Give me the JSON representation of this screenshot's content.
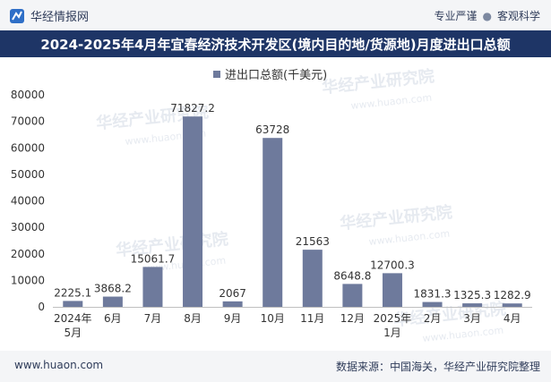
{
  "header": {
    "brand": "华经情报网",
    "tagline_left": "专业严谨",
    "tagline_sep": "●",
    "tagline_right": "客观科学"
  },
  "title": "2024-2025年4月年宜春经济技术开发区(境内目的地/货源地)月度进出口总额",
  "footer": {
    "website": "www.huaon.com",
    "source": "数据来源：中国海关，华经产业研究院整理"
  },
  "watermark": {
    "text": "华经产业研究院",
    "url": "www.huaon.com"
  },
  "colors": {
    "bar": "#6e7a9c",
    "title_bg": "#1e3566"
  },
  "chart_data": {
    "type": "bar",
    "categories": [
      "2024年\n5月",
      "6月",
      "7月",
      "8月",
      "9月",
      "10月",
      "11月",
      "12月",
      "2025年\n1月",
      "2月",
      "3月",
      "4月"
    ],
    "series": [
      {
        "name": "进出口总额(千美元)",
        "values": [
          2225.1,
          3868.2,
          15061.7,
          71827.2,
          2067,
          63728,
          21563,
          8648.8,
          12700.3,
          1831.3,
          1325.3,
          1282.9
        ],
        "labels": [
          "2225.1",
          "3868.2",
          "15061.7",
          "71827.2",
          "2067",
          "63728",
          "21563",
          "8648.8",
          "12700.3",
          "1831.3",
          "1325.3",
          "1282.9"
        ]
      }
    ],
    "ylim": [
      0,
      80000
    ],
    "yticks": [
      0,
      10000,
      20000,
      30000,
      40000,
      50000,
      60000,
      70000,
      80000
    ],
    "title": "",
    "xlabel": "",
    "ylabel": "",
    "legend_position": "top-center",
    "grid": false
  }
}
